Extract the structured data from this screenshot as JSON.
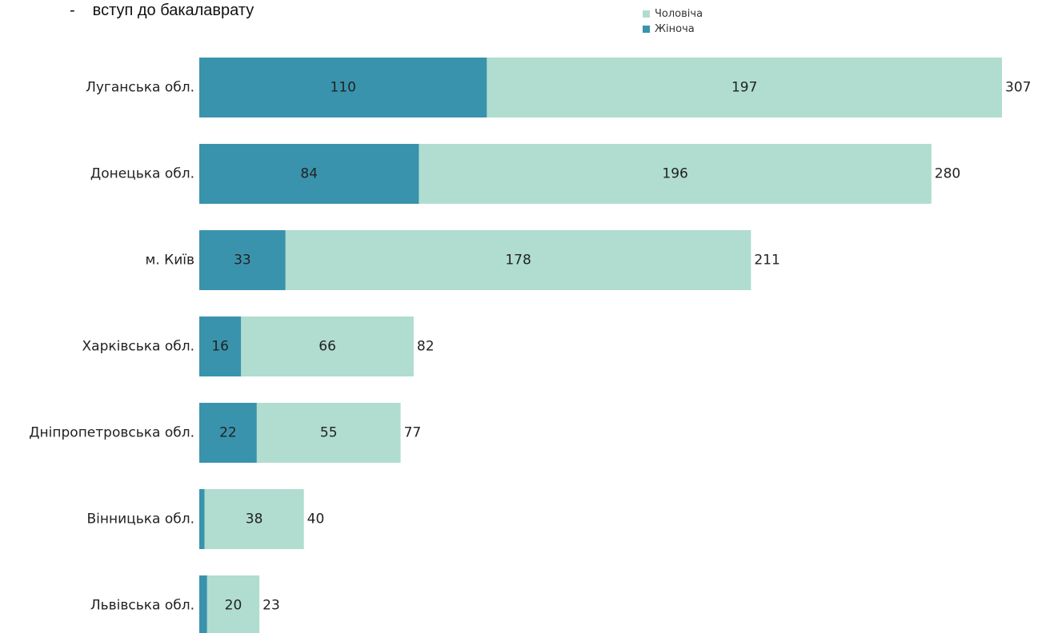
{
  "header": {
    "bullet": "-",
    "text": "вступ до бакалаврату"
  },
  "colors": {
    "male": "#b0ddcf",
    "female": "#3a93ac"
  },
  "chart_data": {
    "type": "bar",
    "orientation": "horizontal",
    "stacked": true,
    "categories": [
      "Луганська обл.",
      "Донецька обл.",
      "м. Київ",
      "Харківська обл.",
      "Дніпропетровська обл.",
      "Вінницька обл.",
      "Львівська обл."
    ],
    "series": [
      {
        "name": "Жіноча",
        "values": [
          110,
          84,
          33,
          16,
          22,
          2,
          3
        ],
        "labels": [
          "110",
          "84",
          "33",
          "16",
          "22",
          "",
          ""
        ]
      },
      {
        "name": "Чоловіча",
        "values": [
          197,
          196,
          178,
          66,
          55,
          38,
          20
        ],
        "labels": [
          "197",
          "196",
          "178",
          "66",
          "55",
          "38",
          "20"
        ]
      }
    ],
    "totals": [
      "307",
      "280",
      "211",
      "82",
      "77",
      "40",
      "23"
    ],
    "xlim": [
      0,
      307
    ],
    "legend": {
      "position": "top-right",
      "items": [
        "Чоловіча",
        "Жіноча"
      ]
    },
    "grid": false
  }
}
